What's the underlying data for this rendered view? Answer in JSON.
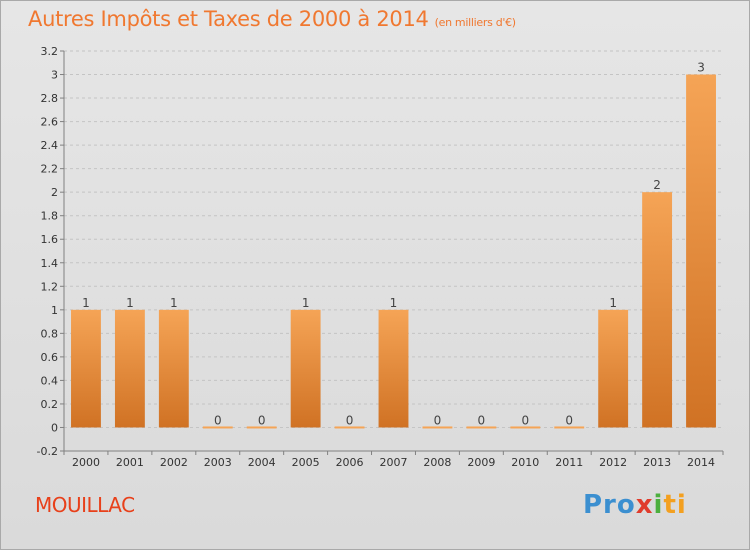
{
  "commune": "MOUILLAC",
  "logo": {
    "parts": [
      "Pro",
      "x",
      "i",
      "ti"
    ]
  },
  "colors": {
    "bar_top": "#f5a456",
    "bar_bottom": "#d07224",
    "title": "#f07830",
    "commune": "#e8401a"
  },
  "chart_data": {
    "type": "bar",
    "title": "Autres Impôts et Taxes de 2000 à 2014",
    "subtitle": "(en milliers d'€)",
    "categories": [
      "2000",
      "2001",
      "2002",
      "2003",
      "2004",
      "2005",
      "2006",
      "2007",
      "2008",
      "2009",
      "2010",
      "2011",
      "2012",
      "2013",
      "2014"
    ],
    "values": [
      1,
      1,
      1,
      0,
      0,
      1,
      0,
      1,
      0,
      0,
      0,
      0,
      1,
      2,
      3
    ],
    "data_labels": [
      "1",
      "1",
      "1",
      "0",
      "0",
      "1",
      "0",
      "1",
      "0",
      "0",
      "0",
      "0",
      "1",
      "2",
      "3"
    ],
    "ylim": [
      -0.2,
      3.2
    ],
    "yticks": [
      "-0.2",
      "0",
      "0.2",
      "0.4",
      "0.6",
      "0.8",
      "1",
      "1.2",
      "1.4",
      "1.6",
      "1.8",
      "2",
      "2.2",
      "2.4",
      "2.6",
      "2.8",
      "3",
      "3.2"
    ],
    "ytick_values": [
      -0.2,
      0,
      0.2,
      0.4,
      0.6,
      0.8,
      1,
      1.2,
      1.4,
      1.6,
      1.8,
      2,
      2.2,
      2.4,
      2.6,
      2.8,
      3,
      3.2
    ],
    "grid": true,
    "xlabel": "",
    "ylabel": ""
  }
}
